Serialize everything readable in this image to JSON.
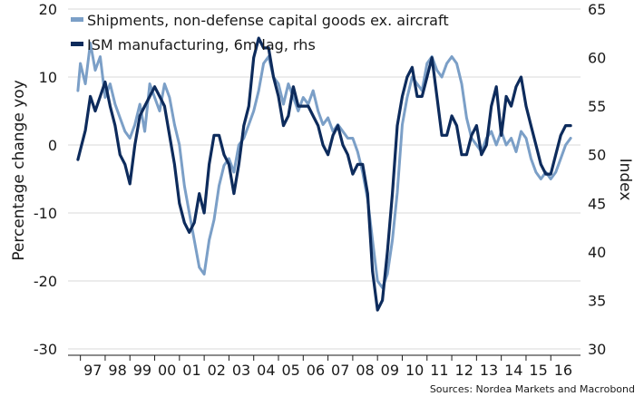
{
  "chart_data": {
    "type": "line",
    "left_axis_label": "Percentage change yoy",
    "right_axis_label": "Index",
    "left_ylim": [
      -30,
      20
    ],
    "left_yticks": [
      "20",
      "10",
      "0",
      "-10",
      "-20",
      "-30"
    ],
    "right_ylim": [
      30,
      65
    ],
    "right_yticks": [
      "65",
      "60",
      "55",
      "50",
      "45",
      "40",
      "35",
      "30"
    ],
    "x_range": [
      1996.5,
      2017.2
    ],
    "x_tick_labels": [
      "97",
      "98",
      "99",
      "00",
      "01",
      "02",
      "03",
      "04",
      "05",
      "06",
      "07",
      "08",
      "09",
      "10",
      "11",
      "12",
      "13",
      "14",
      "15",
      "16"
    ],
    "x_tick_years": [
      1997,
      1998,
      1999,
      2000,
      2001,
      2002,
      2003,
      2004,
      2005,
      2006,
      2007,
      2008,
      2009,
      2010,
      2011,
      2012,
      2013,
      2014,
      2015,
      2016
    ],
    "grid": "horizontal",
    "legend_position": "top-left",
    "source": "Sources: Nordea Markets and Macrobond",
    "series": [
      {
        "name": "Shipments, non-defense capital goods ex. aircraft",
        "axis": "left",
        "color": "#7b9fc7",
        "points": [
          [
            1996.9,
            8
          ],
          [
            1997.0,
            12
          ],
          [
            1997.2,
            9
          ],
          [
            1997.4,
            15
          ],
          [
            1997.6,
            11
          ],
          [
            1997.8,
            13
          ],
          [
            1998.0,
            7
          ],
          [
            1998.2,
            9
          ],
          [
            1998.4,
            6
          ],
          [
            1998.6,
            4
          ],
          [
            1998.8,
            2
          ],
          [
            1999.0,
            1
          ],
          [
            1999.2,
            3
          ],
          [
            1999.4,
            6
          ],
          [
            1999.6,
            2
          ],
          [
            1999.8,
            9
          ],
          [
            2000.0,
            7
          ],
          [
            2000.2,
            5
          ],
          [
            2000.4,
            9
          ],
          [
            2000.6,
            7
          ],
          [
            2000.8,
            3
          ],
          [
            2001.0,
            0
          ],
          [
            2001.2,
            -6
          ],
          [
            2001.4,
            -10
          ],
          [
            2001.6,
            -14
          ],
          [
            2001.8,
            -18
          ],
          [
            2002.0,
            -19
          ],
          [
            2002.2,
            -14
          ],
          [
            2002.4,
            -11
          ],
          [
            2002.6,
            -6
          ],
          [
            2002.8,
            -3
          ],
          [
            2003.0,
            -2
          ],
          [
            2003.2,
            -4
          ],
          [
            2003.4,
            0
          ],
          [
            2003.6,
            1
          ],
          [
            2003.8,
            3
          ],
          [
            2004.0,
            5
          ],
          [
            2004.2,
            8
          ],
          [
            2004.4,
            12
          ],
          [
            2004.6,
            13
          ],
          [
            2004.8,
            10
          ],
          [
            2005.0,
            9
          ],
          [
            2005.2,
            6
          ],
          [
            2005.4,
            9
          ],
          [
            2005.6,
            7
          ],
          [
            2005.8,
            5
          ],
          [
            2006.0,
            7
          ],
          [
            2006.2,
            6
          ],
          [
            2006.4,
            8
          ],
          [
            2006.6,
            5
          ],
          [
            2006.8,
            3
          ],
          [
            2007.0,
            4
          ],
          [
            2007.2,
            2
          ],
          [
            2007.4,
            3
          ],
          [
            2007.6,
            2
          ],
          [
            2007.8,
            1
          ],
          [
            2008.0,
            1
          ],
          [
            2008.2,
            -1
          ],
          [
            2008.4,
            -4
          ],
          [
            2008.6,
            -8
          ],
          [
            2008.8,
            -14
          ],
          [
            2009.0,
            -20
          ],
          [
            2009.2,
            -21
          ],
          [
            2009.4,
            -19
          ],
          [
            2009.6,
            -14
          ],
          [
            2009.8,
            -7
          ],
          [
            2010.0,
            3
          ],
          [
            2010.2,
            7
          ],
          [
            2010.4,
            10
          ],
          [
            2010.6,
            9
          ],
          [
            2010.8,
            8
          ],
          [
            2011.0,
            12
          ],
          [
            2011.2,
            13
          ],
          [
            2011.4,
            11
          ],
          [
            2011.6,
            10
          ],
          [
            2011.8,
            12
          ],
          [
            2012.0,
            13
          ],
          [
            2012.2,
            12
          ],
          [
            2012.4,
            9
          ],
          [
            2012.6,
            4
          ],
          [
            2012.8,
            1
          ],
          [
            2013.0,
            0
          ],
          [
            2013.2,
            -1
          ],
          [
            2013.4,
            1
          ],
          [
            2013.6,
            2
          ],
          [
            2013.8,
            0
          ],
          [
            2014.0,
            2
          ],
          [
            2014.2,
            0
          ],
          [
            2014.4,
            1
          ],
          [
            2014.6,
            -1
          ],
          [
            2014.8,
            2
          ],
          [
            2015.0,
            1
          ],
          [
            2015.2,
            -2
          ],
          [
            2015.4,
            -4
          ],
          [
            2015.6,
            -5
          ],
          [
            2015.8,
            -4
          ],
          [
            2016.0,
            -5
          ],
          [
            2016.2,
            -4
          ],
          [
            2016.4,
            -2
          ],
          [
            2016.6,
            0
          ],
          [
            2016.8,
            1
          ]
        ]
      },
      {
        "name": "ISM manufacturing, 6m lag, rhs",
        "axis": "right",
        "color": "#0d2b5c",
        "points": [
          [
            1996.9,
            49.5
          ],
          [
            1997.0,
            50.5
          ],
          [
            1997.2,
            52.5
          ],
          [
            1997.4,
            56
          ],
          [
            1997.6,
            54.5
          ],
          [
            1997.8,
            56
          ],
          [
            1998.0,
            57.5
          ],
          [
            1998.2,
            55
          ],
          [
            1998.4,
            53
          ],
          [
            1998.6,
            50
          ],
          [
            1998.8,
            49
          ],
          [
            1999.0,
            47
          ],
          [
            1999.2,
            51
          ],
          [
            1999.4,
            54
          ],
          [
            1999.6,
            55
          ],
          [
            1999.8,
            56
          ],
          [
            2000.0,
            57
          ],
          [
            2000.2,
            56
          ],
          [
            2000.4,
            55
          ],
          [
            2000.6,
            52
          ],
          [
            2000.8,
            49
          ],
          [
            2001.0,
            45
          ],
          [
            2001.2,
            43
          ],
          [
            2001.4,
            42
          ],
          [
            2001.6,
            43
          ],
          [
            2001.8,
            46
          ],
          [
            2002.0,
            44
          ],
          [
            2002.2,
            49
          ],
          [
            2002.4,
            52
          ],
          [
            2002.6,
            52
          ],
          [
            2002.8,
            50
          ],
          [
            2003.0,
            49
          ],
          [
            2003.2,
            46
          ],
          [
            2003.4,
            49
          ],
          [
            2003.6,
            53
          ],
          [
            2003.8,
            55
          ],
          [
            2004.0,
            60
          ],
          [
            2004.2,
            62
          ],
          [
            2004.4,
            61
          ],
          [
            2004.6,
            61
          ],
          [
            2004.8,
            58
          ],
          [
            2005.0,
            56
          ],
          [
            2005.2,
            53
          ],
          [
            2005.4,
            54
          ],
          [
            2005.6,
            57
          ],
          [
            2005.8,
            55
          ],
          [
            2006.0,
            55
          ],
          [
            2006.2,
            55
          ],
          [
            2006.4,
            54
          ],
          [
            2006.6,
            53
          ],
          [
            2006.8,
            51
          ],
          [
            2007.0,
            50
          ],
          [
            2007.2,
            52
          ],
          [
            2007.4,
            53
          ],
          [
            2007.6,
            51
          ],
          [
            2007.8,
            50
          ],
          [
            2008.0,
            48
          ],
          [
            2008.2,
            49
          ],
          [
            2008.4,
            49
          ],
          [
            2008.6,
            46
          ],
          [
            2008.8,
            38
          ],
          [
            2009.0,
            34
          ],
          [
            2009.2,
            35
          ],
          [
            2009.4,
            40
          ],
          [
            2009.6,
            46
          ],
          [
            2009.8,
            53
          ],
          [
            2010.0,
            56
          ],
          [
            2010.2,
            58
          ],
          [
            2010.4,
            59
          ],
          [
            2010.6,
            56
          ],
          [
            2010.8,
            56
          ],
          [
            2011.0,
            58
          ],
          [
            2011.2,
            60
          ],
          [
            2011.4,
            56
          ],
          [
            2011.6,
            52
          ],
          [
            2011.8,
            52
          ],
          [
            2012.0,
            54
          ],
          [
            2012.2,
            53
          ],
          [
            2012.4,
            50
          ],
          [
            2012.6,
            50
          ],
          [
            2012.8,
            52
          ],
          [
            2013.0,
            53
          ],
          [
            2013.2,
            50
          ],
          [
            2013.4,
            51
          ],
          [
            2013.6,
            55
          ],
          [
            2013.8,
            57
          ],
          [
            2014.0,
            52
          ],
          [
            2014.2,
            56
          ],
          [
            2014.4,
            55
          ],
          [
            2014.6,
            57
          ],
          [
            2014.8,
            58
          ],
          [
            2015.0,
            55
          ],
          [
            2015.2,
            53
          ],
          [
            2015.4,
            51
          ],
          [
            2015.6,
            49
          ],
          [
            2015.8,
            48
          ],
          [
            2016.0,
            48
          ],
          [
            2016.2,
            50
          ],
          [
            2016.4,
            52
          ],
          [
            2016.6,
            53
          ],
          [
            2016.8,
            53
          ]
        ]
      }
    ]
  }
}
